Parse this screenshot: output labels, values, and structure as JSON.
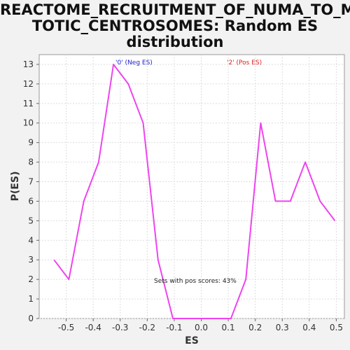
{
  "chart_data": {
    "type": "line",
    "title_lines": [
      "REACTOME_RECRUITMENT_OF_NUMA_TO_MI",
      "TOTIC_CENTROSOMES: Random ES",
      "distribution"
    ],
    "xlabel": "ES",
    "ylabel": "P(ES)",
    "xlim": [
      -0.6,
      0.53
    ],
    "ylim": [
      0,
      13.5
    ],
    "xticks": [
      -0.5,
      -0.4,
      -0.3,
      -0.2,
      -0.1,
      0.0,
      0.1,
      0.2,
      0.3,
      0.4,
      0.5
    ],
    "xtick_labels": [
      "-0.5",
      "-0.4",
      "-0.3",
      "-0.2",
      "-0.1",
      "0.0",
      "0.1",
      "0.2",
      "0.3",
      "0.4",
      "0.5"
    ],
    "yticks": [
      0,
      1,
      2,
      3,
      4,
      5,
      6,
      7,
      8,
      9,
      10,
      11,
      12,
      13
    ],
    "grid": true,
    "series": [
      {
        "color": "#ee44ee",
        "x": [
          -0.545,
          -0.49,
          -0.435,
          -0.38,
          -0.325,
          -0.27,
          -0.215,
          -0.16,
          -0.105,
          -0.05,
          0.0,
          0.055,
          0.11,
          0.165,
          0.22,
          0.275,
          0.33,
          0.385,
          0.44,
          0.495
        ],
        "y": [
          3,
          2,
          6,
          8,
          13,
          12,
          10,
          3,
          0,
          0,
          0,
          0,
          0,
          2,
          10,
          6,
          6,
          8,
          6,
          5
        ]
      }
    ],
    "annotations": {
      "neg_label": "'0' (Neg ES)",
      "neg_color": "#2222cc",
      "pos_label": "'2' (Pos ES)",
      "pos_color": "#dd2222",
      "pos_scores_text": "Sets with pos scores: 43%"
    }
  }
}
